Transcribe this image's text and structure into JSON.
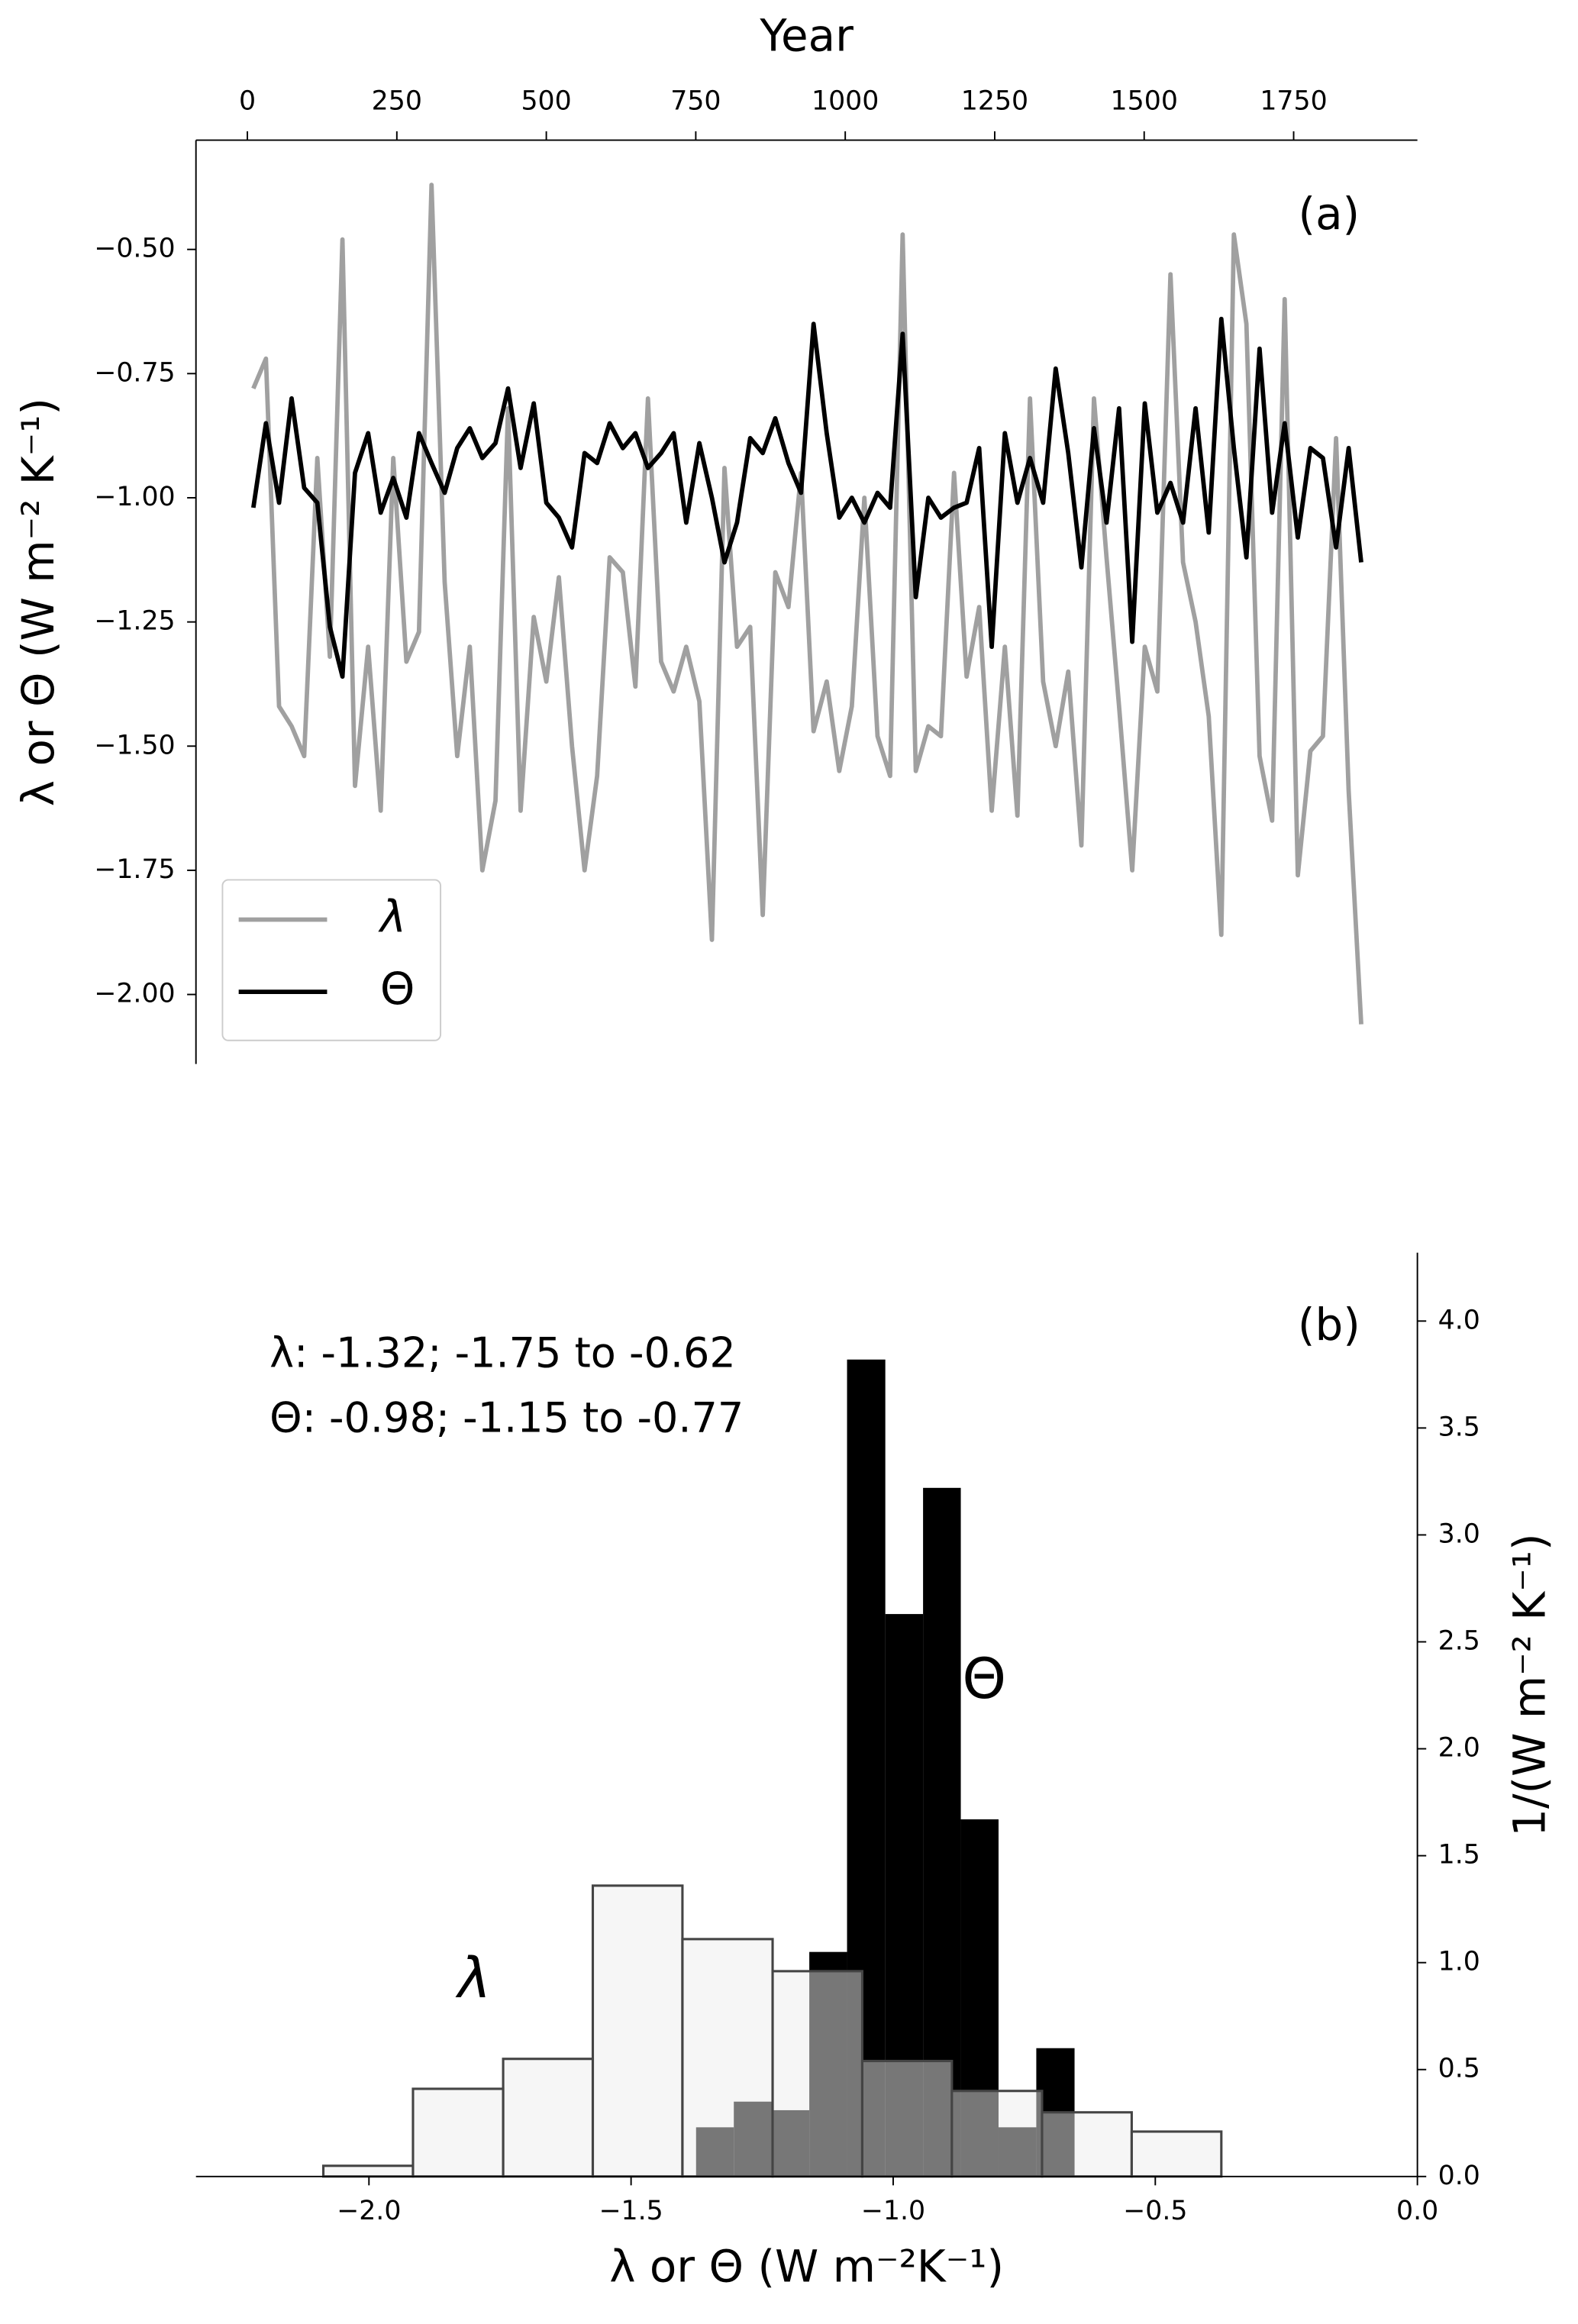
{
  "chart_data": [
    {
      "type": "line",
      "x_label": "Year",
      "y_label": "λ or Θ (W  m⁻² K⁻¹)",
      "annotation": "(a)",
      "x_axis_position": "top",
      "legend": "lower left",
      "x": [
        10,
        31,
        53,
        74,
        95,
        117,
        138,
        159,
        180,
        202,
        223,
        244,
        266,
        287,
        308,
        330,
        351,
        372,
        393,
        415,
        436,
        457,
        479,
        500,
        521,
        543,
        564,
        585,
        606,
        628,
        649,
        670,
        692,
        713,
        734,
        756,
        777,
        798,
        819,
        841,
        862,
        883,
        905,
        926,
        947,
        969,
        990,
        1011,
        1032,
        1054,
        1075,
        1096,
        1118,
        1139,
        1160,
        1182,
        1203,
        1224,
        1245,
        1267,
        1288,
        1309,
        1331,
        1352,
        1373,
        1395,
        1416,
        1437,
        1458,
        1480,
        1501,
        1522,
        1544,
        1565,
        1586,
        1608,
        1629,
        1650,
        1671,
        1693,
        1714,
        1735,
        1757,
        1778,
        1799,
        1821,
        1842,
        1863
      ],
      "series": [
        {
          "name": "λ",
          "color": "#a0a0a0",
          "values": [
            -0.78,
            -0.72,
            -1.42,
            -1.46,
            -1.52,
            -0.92,
            -1.32,
            -0.48,
            -1.58,
            -1.3,
            -1.63,
            -0.92,
            -1.33,
            -1.27,
            -0.37,
            -1.17,
            -1.52,
            -1.3,
            -1.75,
            -1.61,
            -0.82,
            -1.63,
            -1.24,
            -1.37,
            -1.16,
            -1.5,
            -1.75,
            -1.56,
            -1.12,
            -1.15,
            -1.38,
            -0.8,
            -1.33,
            -1.39,
            -1.3,
            -1.41,
            -1.89,
            -0.94,
            -1.3,
            -1.26,
            -1.84,
            -1.15,
            -1.22,
            -0.95,
            -1.47,
            -1.37,
            -1.55,
            -1.42,
            -1.0,
            -1.48,
            -1.56,
            -0.47,
            -1.55,
            -1.46,
            -1.48,
            -0.95,
            -1.36,
            -1.22,
            -1.63,
            -1.3,
            -1.64,
            -0.8,
            -1.37,
            -1.5,
            -1.35,
            -1.7,
            -0.8,
            -1.12,
            -1.42,
            -1.75,
            -1.3,
            -1.39,
            -0.55,
            -1.13,
            -1.25,
            -1.44,
            -1.88,
            -0.47,
            -0.65,
            -1.52,
            -1.65,
            -0.6,
            -1.76,
            -1.51,
            -1.48,
            -0.88,
            -1.59,
            -2.06
          ]
        },
        {
          "name": "Θ",
          "color": "#000000",
          "values": [
            -1.02,
            -0.85,
            -1.01,
            -0.8,
            -0.98,
            -1.01,
            -1.26,
            -1.36,
            -0.95,
            -0.87,
            -1.03,
            -0.96,
            -1.04,
            -0.87,
            -0.93,
            -0.99,
            -0.9,
            -0.86,
            -0.92,
            -0.89,
            -0.78,
            -0.94,
            -0.81,
            -1.01,
            -1.04,
            -1.1,
            -0.91,
            -0.93,
            -0.85,
            -0.9,
            -0.87,
            -0.94,
            -0.91,
            -0.87,
            -1.05,
            -0.89,
            -1.0,
            -1.13,
            -1.05,
            -0.88,
            -0.91,
            -0.84,
            -0.93,
            -0.99,
            -0.65,
            -0.87,
            -1.04,
            -1.0,
            -1.05,
            -0.99,
            -1.02,
            -0.67,
            -1.2,
            -1.0,
            -1.04,
            -1.02,
            -1.01,
            -0.9,
            -1.3,
            -0.87,
            -1.01,
            -0.92,
            -1.01,
            -0.74,
            -0.91,
            -1.14,
            -0.86,
            -1.05,
            -0.82,
            -1.29,
            -0.81,
            -1.03,
            -0.97,
            -1.05,
            -0.82,
            -1.07,
            -0.64,
            -0.9,
            -1.12,
            -0.7,
            -1.03,
            -0.85,
            -1.08,
            -0.9,
            -0.92,
            -1.1,
            -0.9,
            -1.13
          ]
        }
      ],
      "xlim": [
        -86,
        1957
      ],
      "ylim": [
        -2.14,
        -0.28
      ],
      "xticks": [
        0,
        250,
        500,
        750,
        1000,
        1250,
        1500,
        1750
      ],
      "yticks": [
        {
          "value": -0.5,
          "label": "−0.50"
        },
        {
          "value": -0.75,
          "label": "−0.75"
        },
        {
          "value": -1.0,
          "label": "−1.00"
        },
        {
          "value": -1.25,
          "label": "−1.25"
        },
        {
          "value": -1.5,
          "label": "−1.50"
        },
        {
          "value": -1.75,
          "label": "−1.75"
        },
        {
          "value": -2.0,
          "label": "−2.00"
        }
      ]
    },
    {
      "type": "histogram",
      "x_label": "λ or Θ (W  m⁻²K⁻¹)",
      "y_label": "1/(W  m⁻² K⁻¹)",
      "annotation": "(b)",
      "stats": [
        "λ: -1.32; -1.75 to -0.62",
        "Θ: -0.98; -1.15 to -0.77"
      ],
      "y_axis_position": "right",
      "series": [
        {
          "name": "Θ",
          "color": "#000000",
          "bins": [
            -1.376,
            -1.304,
            -1.232,
            -1.16,
            -1.088,
            -1.015,
            -0.943,
            -0.871,
            -0.799,
            -0.727,
            -0.654
          ],
          "counts": [
            0.23,
            0.35,
            0.31,
            1.05,
            3.82,
            2.63,
            3.22,
            1.67,
            0.23,
            0.6
          ]
        },
        {
          "name": "λ",
          "color": "#eeeeee",
          "bins": [
            -2.087,
            -1.916,
            -1.744,
            -1.573,
            -1.402,
            -1.23,
            -1.059,
            -0.888,
            -0.716,
            -0.545,
            -0.374
          ],
          "counts": [
            0.05,
            0.41,
            0.55,
            1.36,
            1.11,
            0.96,
            0.54,
            0.4,
            0.3,
            0.21
          ]
        }
      ],
      "xlim": [
        -2.33,
        0
      ],
      "ylim": [
        0,
        4.32
      ],
      "xticks": [
        {
          "value": -2.0,
          "label": "−2.0"
        },
        {
          "value": -1.5,
          "label": "−1.5"
        },
        {
          "value": -1.0,
          "label": "−1.0"
        },
        {
          "value": -0.5,
          "label": "−0.5"
        },
        {
          "value": 0.0,
          "label": "0.0"
        }
      ],
      "yticks": [
        {
          "value": 0.0,
          "label": "0.0"
        },
        {
          "value": 0.5,
          "label": "0.5"
        },
        {
          "value": 1.0,
          "label": "1.0"
        },
        {
          "value": 1.5,
          "label": "1.5"
        },
        {
          "value": 2.0,
          "label": "2.0"
        },
        {
          "value": 2.5,
          "label": "2.5"
        },
        {
          "value": 3.0,
          "label": "3.0"
        },
        {
          "value": 3.5,
          "label": "3.5"
        },
        {
          "value": 4.0,
          "label": "4.0"
        }
      ]
    }
  ]
}
